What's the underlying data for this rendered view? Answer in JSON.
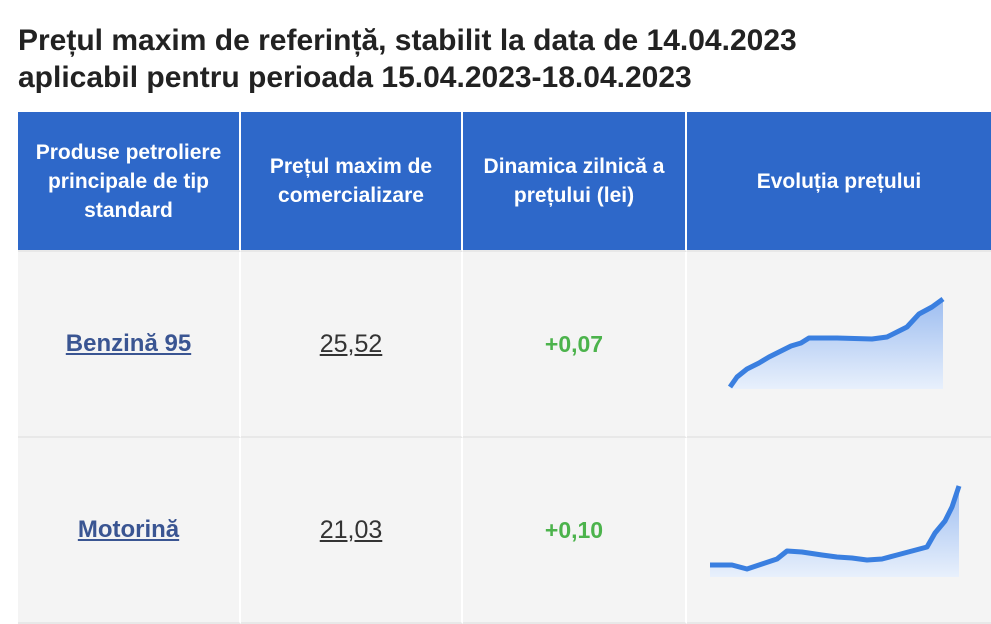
{
  "title": [
    "Prețul maxim de referință, stabilit la data de 14.04.2023",
    "aplicabil pentru perioada 15.04.2023-18.04.2023"
  ],
  "table": {
    "header": [
      "Produse petroliere principale de tip standard",
      "Prețul maxim de comercializare",
      "Dinamica zilnică a prețului (lei)",
      "Evoluția prețului"
    ],
    "rows": [
      [
        "Benzină 95",
        "25,52",
        "+0,07"
      ],
      [
        "Motorină",
        "21,03",
        "+0,10"
      ]
    ]
  }
}
